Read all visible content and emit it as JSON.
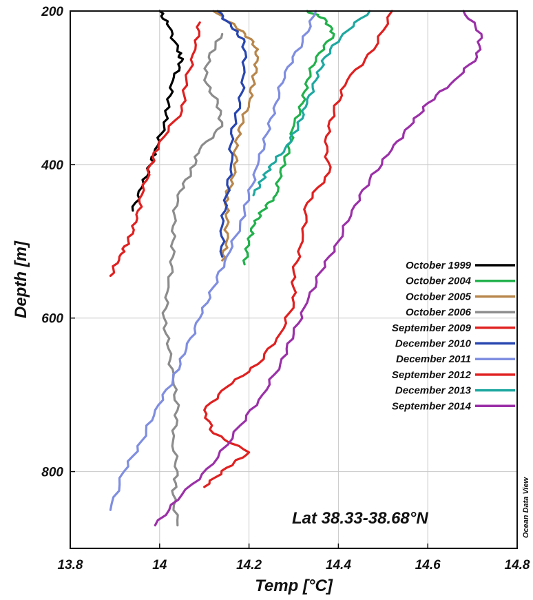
{
  "chart_data": {
    "type": "line",
    "title": "",
    "xlabel": "Temp [°C]",
    "ylabel": "Depth [m]",
    "xlim": [
      13.8,
      14.8
    ],
    "ylim": [
      200,
      900
    ],
    "y_inverted": true,
    "grid": true,
    "x_ticks": [
      "13.8",
      "14",
      "14.2",
      "14.4",
      "14.6",
      "14.8"
    ],
    "y_ticks": [
      "200",
      "400",
      "600",
      "800"
    ],
    "legend_position": "right",
    "annotation": "Lat 38.33-38.68°N",
    "watermark": "Ocean Data View",
    "series": [
      {
        "name": "October 1999",
        "color": "#000000",
        "points": [
          [
            14.0,
            200
          ],
          [
            14.02,
            220
          ],
          [
            14.04,
            250
          ],
          [
            14.05,
            265
          ],
          [
            14.03,
            290
          ],
          [
            14.02,
            320
          ],
          [
            14.01,
            350
          ],
          [
            13.99,
            380
          ],
          [
            13.98,
            400
          ],
          [
            13.96,
            430
          ],
          [
            13.94,
            460
          ]
        ]
      },
      {
        "name": "October 2004",
        "color": "#22b14c",
        "points": [
          [
            14.33,
            200
          ],
          [
            14.37,
            210
          ],
          [
            14.39,
            230
          ],
          [
            14.35,
            260
          ],
          [
            14.33,
            290
          ],
          [
            14.32,
            320
          ],
          [
            14.3,
            350
          ],
          [
            14.29,
            380
          ],
          [
            14.27,
            410
          ],
          [
            14.26,
            440
          ],
          [
            14.23,
            460
          ],
          [
            14.21,
            480
          ],
          [
            14.2,
            500
          ],
          [
            14.19,
            530
          ]
        ]
      },
      {
        "name": "October 2005",
        "color": "#b8864b",
        "points": [
          [
            14.12,
            200
          ],
          [
            14.17,
            220
          ],
          [
            14.21,
            240
          ],
          [
            14.22,
            260
          ],
          [
            14.21,
            290
          ],
          [
            14.2,
            320
          ],
          [
            14.18,
            350
          ],
          [
            14.17,
            380
          ],
          [
            14.17,
            410
          ],
          [
            14.15,
            440
          ],
          [
            14.15,
            470
          ],
          [
            14.15,
            500
          ],
          [
            14.14,
            525
          ]
        ]
      },
      {
        "name": "October 2006",
        "color": "#8c8c8c",
        "points": [
          [
            14.14,
            230
          ],
          [
            14.11,
            260
          ],
          [
            14.1,
            290
          ],
          [
            14.13,
            320
          ],
          [
            14.14,
            350
          ],
          [
            14.09,
            380
          ],
          [
            14.07,
            410
          ],
          [
            14.04,
            440
          ],
          [
            14.03,
            480
          ],
          [
            14.03,
            520
          ],
          [
            14.02,
            560
          ],
          [
            14.01,
            600
          ],
          [
            14.02,
            640
          ],
          [
            14.03,
            680
          ],
          [
            14.04,
            720
          ],
          [
            14.03,
            760
          ],
          [
            14.04,
            800
          ],
          [
            14.03,
            830
          ],
          [
            14.04,
            870
          ]
        ]
      },
      {
        "name": "September 2009",
        "color": "#e02020",
        "points": [
          [
            14.09,
            215
          ],
          [
            14.08,
            250
          ],
          [
            14.06,
            290
          ],
          [
            14.05,
            330
          ],
          [
            14.0,
            370
          ],
          [
            13.98,
            400
          ],
          [
            13.96,
            440
          ],
          [
            13.95,
            470
          ],
          [
            13.93,
            500
          ],
          [
            13.91,
            520
          ],
          [
            13.89,
            545
          ]
        ]
      },
      {
        "name": "December 2010",
        "color": "#2846b0",
        "points": [
          [
            14.13,
            200
          ],
          [
            14.16,
            220
          ],
          [
            14.19,
            240
          ],
          [
            14.19,
            280
          ],
          [
            14.18,
            320
          ],
          [
            14.16,
            360
          ],
          [
            14.16,
            400
          ],
          [
            14.15,
            440
          ],
          [
            14.14,
            480
          ],
          [
            14.14,
            520
          ]
        ]
      },
      {
        "name": "December 2011",
        "color": "#7f8ee0",
        "points": [
          [
            14.35,
            200
          ],
          [
            14.32,
            240
          ],
          [
            14.28,
            280
          ],
          [
            14.26,
            320
          ],
          [
            14.24,
            360
          ],
          [
            14.22,
            400
          ],
          [
            14.2,
            440
          ],
          [
            14.18,
            480
          ],
          [
            14.15,
            520
          ],
          [
            14.12,
            560
          ],
          [
            14.09,
            600
          ],
          [
            14.06,
            640
          ],
          [
            14.03,
            680
          ],
          [
            13.99,
            720
          ],
          [
            13.96,
            760
          ],
          [
            13.92,
            800
          ],
          [
            13.89,
            850
          ]
        ]
      },
      {
        "name": "September 2012",
        "color": "#e02020",
        "points": [
          [
            14.52,
            200
          ],
          [
            14.48,
            250
          ],
          [
            14.42,
            290
          ],
          [
            14.39,
            330
          ],
          [
            14.37,
            370
          ],
          [
            14.38,
            410
          ],
          [
            14.33,
            450
          ],
          [
            14.32,
            500
          ],
          [
            14.3,
            540
          ],
          [
            14.3,
            580
          ],
          [
            14.27,
            620
          ],
          [
            14.22,
            660
          ],
          [
            14.15,
            690
          ],
          [
            14.1,
            720
          ],
          [
            14.12,
            750
          ],
          [
            14.2,
            775
          ],
          [
            14.15,
            795
          ],
          [
            14.1,
            820
          ]
        ]
      },
      {
        "name": "December 2013",
        "color": "#1ea8a0",
        "points": [
          [
            14.47,
            200
          ],
          [
            14.41,
            230
          ],
          [
            14.37,
            260
          ],
          [
            14.35,
            290
          ],
          [
            14.33,
            320
          ],
          [
            14.31,
            350
          ],
          [
            14.28,
            380
          ],
          [
            14.25,
            400
          ],
          [
            14.23,
            420
          ],
          [
            14.21,
            440
          ]
        ]
      },
      {
        "name": "September 2014",
        "color": "#9b30a8",
        "points": [
          [
            14.68,
            200
          ],
          [
            14.72,
            230
          ],
          [
            14.71,
            260
          ],
          [
            14.66,
            290
          ],
          [
            14.6,
            320
          ],
          [
            14.56,
            350
          ],
          [
            14.52,
            380
          ],
          [
            14.47,
            420
          ],
          [
            14.43,
            460
          ],
          [
            14.4,
            500
          ],
          [
            14.36,
            540
          ],
          [
            14.33,
            580
          ],
          [
            14.3,
            620
          ],
          [
            14.27,
            660
          ],
          [
            14.23,
            700
          ],
          [
            14.18,
            740
          ],
          [
            14.12,
            790
          ],
          [
            14.05,
            830
          ],
          [
            13.99,
            870
          ]
        ]
      }
    ]
  }
}
